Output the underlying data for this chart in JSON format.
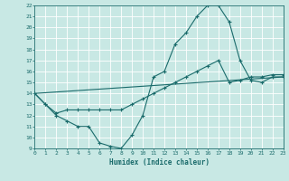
{
  "xlabel": "Humidex (Indice chaleur)",
  "xlim": [
    0,
    23
  ],
  "ylim": [
    9,
    22
  ],
  "xticks": [
    0,
    1,
    2,
    3,
    4,
    5,
    6,
    7,
    8,
    9,
    10,
    11,
    12,
    13,
    14,
    15,
    16,
    17,
    18,
    19,
    20,
    21,
    22,
    23
  ],
  "yticks": [
    9,
    10,
    11,
    12,
    13,
    14,
    15,
    16,
    17,
    18,
    19,
    20,
    21,
    22
  ],
  "bg_color": "#c8e8e4",
  "line_color": "#1a6b6b",
  "grid_color": "#aad4d0",
  "line1_x": [
    0,
    1,
    2,
    3,
    4,
    5,
    6,
    7,
    8,
    9,
    10,
    11,
    12,
    13,
    14,
    15,
    16,
    17,
    18,
    19,
    20,
    21,
    22,
    23
  ],
  "line1_y": [
    14,
    13,
    12,
    11.5,
    11,
    11,
    9.5,
    9.2,
    9,
    10.2,
    12,
    15.5,
    16,
    18.5,
    19.5,
    21,
    22,
    22,
    20.5,
    17,
    15.2,
    15,
    15.5,
    15.5
  ],
  "line2_x": [
    0,
    1,
    2,
    3,
    4,
    5,
    6,
    7,
    8,
    9,
    10,
    11,
    12,
    13,
    14,
    15,
    16,
    17,
    18,
    19,
    20,
    21,
    22,
    23
  ],
  "line2_y": [
    14,
    13,
    12.2,
    12.5,
    12.5,
    12.5,
    12.5,
    12.5,
    12.5,
    13,
    13.5,
    14,
    14.5,
    15,
    15.5,
    16,
    16.5,
    17,
    15,
    15.2,
    15.5,
    15.5,
    15.7,
    15.7
  ],
  "line3_x": [
    0,
    23
  ],
  "line3_y": [
    14,
    15.5
  ],
  "marker": "+"
}
